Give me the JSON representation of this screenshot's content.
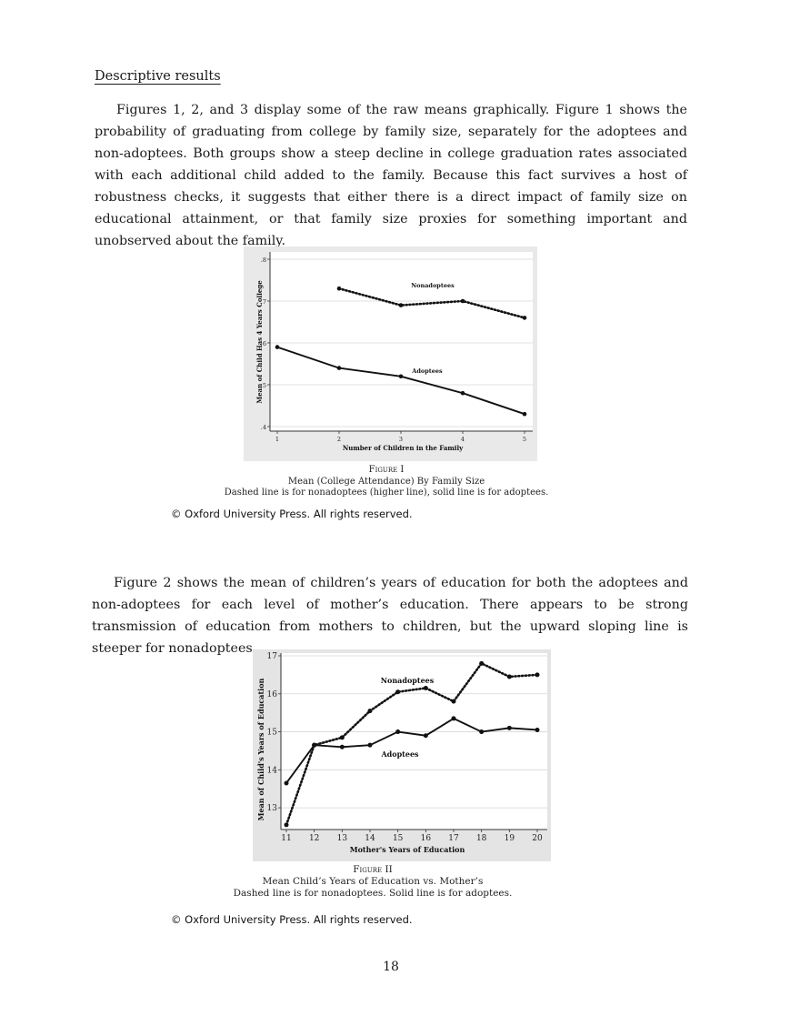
{
  "section_heading": "Descriptive results",
  "paragraph1": "Figures 1, 2, and 3 display some of the raw means graphically. Figure 1 shows the probability of graduating from college by family size, separately for the adoptees and non-adoptees. Both groups show a steep decline in college graduation rates associated with each additional child added to the family. Because this fact survives a host of robustness checks, it suggests that either there is a direct impact of family size on educational attainment, or that family size proxies for something important and unobserved about the family.",
  "paragraph2": "Figure 2 shows the mean of children’s years of education for both the adoptees and non-adoptees for each level of mother’s education. There appears to be strong transmission of education from mothers to children, but the upward sloping line is steeper for nonadoptees.",
  "figure1": {
    "caption_label": "Figure I",
    "caption_title": "Mean (College Attendance) By Family Size",
    "caption_note": "Dashed line is for nonadoptees (higher line), solid line is for adoptees.",
    "copyright": "© Oxford University Press. All rights reserved."
  },
  "figure2": {
    "caption_label": "Figure II",
    "caption_title": "Mean Child’s Years of Education vs. Mother’s",
    "caption_note": "Dashed line is for nonadoptees. Solid line is for adoptees.",
    "copyright": "© Oxford University Press. All rights reserved."
  },
  "page_number": "18",
  "chart_data": [
    {
      "type": "line",
      "ylabel": "Mean of Child Has 4 Years College",
      "xlabel": "Number of Children in the Family",
      "x": [
        1,
        2,
        3,
        4,
        5
      ],
      "x_tick_labels": [
        "1",
        "2",
        "3",
        "4",
        "5"
      ],
      "y_tick_labels": [
        ".4",
        ".5",
        ".6",
        ".7",
        ".8"
      ],
      "y_ticks": [
        0.4,
        0.5,
        0.6,
        0.7,
        0.8
      ],
      "ylim": [
        0.4,
        0.8
      ],
      "xlim": [
        1,
        5
      ],
      "grid": true,
      "series": [
        {
          "name": "Nonadoptees",
          "style": "dotted",
          "x": [
            2,
            3,
            4,
            5
          ],
          "values": [
            0.73,
            0.69,
            0.7,
            0.66
          ]
        },
        {
          "name": "Adoptees",
          "style": "solid",
          "x": [
            1,
            2,
            3,
            4,
            5
          ],
          "values": [
            0.59,
            0.54,
            0.52,
            0.48,
            0.43
          ]
        }
      ]
    },
    {
      "type": "line",
      "ylabel": "Mean of Child's Years of Education",
      "xlabel": "Mother's Years of Education",
      "x": [
        11,
        12,
        13,
        14,
        15,
        16,
        17,
        18,
        19,
        20
      ],
      "x_tick_labels": [
        "11",
        "12",
        "13",
        "14",
        "15",
        "16",
        "17",
        "18",
        "19",
        "20"
      ],
      "y_tick_labels": [
        "13",
        "14",
        "15",
        "16",
        "17"
      ],
      "y_ticks": [
        13,
        14,
        15,
        16,
        17
      ],
      "ylim": [
        12.5,
        17
      ],
      "xlim": [
        11,
        20
      ],
      "grid": true,
      "series": [
        {
          "name": "Nonadoptees",
          "style": "dotted",
          "x": [
            11,
            12,
            13,
            14,
            15,
            16,
            17,
            18,
            19,
            20
          ],
          "values": [
            12.55,
            14.65,
            14.85,
            15.55,
            16.05,
            16.15,
            15.8,
            16.8,
            16.45,
            16.5
          ]
        },
        {
          "name": "Adoptees",
          "style": "solid",
          "x": [
            11,
            12,
            13,
            14,
            15,
            16,
            17,
            18,
            19,
            20
          ],
          "values": [
            13.65,
            14.65,
            14.6,
            14.65,
            15.0,
            14.9,
            15.35,
            15.0,
            15.1,
            15.05
          ]
        }
      ]
    }
  ]
}
